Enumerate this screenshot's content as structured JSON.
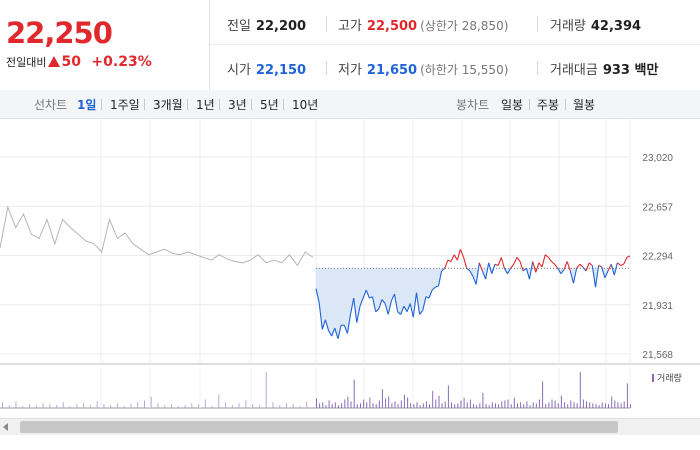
{
  "quote": {
    "price": "22,250",
    "change_label": "전일대비",
    "change_value": "50",
    "change_pct": "+0.23%",
    "stats": {
      "prev_close": {
        "label": "전일",
        "value": "22,200"
      },
      "high": {
        "label": "고가",
        "value": "22,500",
        "limit_text": "(상한가 28,850)"
      },
      "volume": {
        "label": "거래량",
        "value": "42,394"
      },
      "open": {
        "label": "시가",
        "value": "22,150"
      },
      "low": {
        "label": "저가",
        "value": "21,650",
        "limit_text": "(하한가 15,550)"
      },
      "amount": {
        "label": "거래대금",
        "value": "933 백만"
      }
    }
  },
  "toolbar": {
    "line_label": "선차트",
    "line_tabs": [
      "1일",
      "1주일",
      "3개월",
      "1년",
      "3년",
      "5년",
      "10년"
    ],
    "active_tab": "1일",
    "candle_label": "봉차트",
    "candle_tabs": [
      "일봉",
      "주봉",
      "월봉"
    ]
  },
  "chart_data": {
    "type": "line",
    "ylim": [
      21568,
      23020
    ],
    "y_ticks": [
      "23,020",
      "22,657",
      "22,294",
      "21,931",
      "21,568"
    ],
    "reference_price": 22200,
    "volume_legend": "거래량",
    "colors": {
      "up": "#e0292d",
      "down": "#1f63d6",
      "prev": "#b5b5b5",
      "fill": "#dce8f8"
    },
    "prev_day": [
      22350,
      22650,
      22500,
      22600,
      22450,
      22420,
      22560,
      22380,
      22560,
      22500,
      22450,
      22400,
      22380,
      22320,
      22560,
      22420,
      22460,
      22380,
      22340,
      22300,
      22320,
      22340,
      22310,
      22300,
      22320,
      22300,
      22280,
      22260,
      22300,
      22270,
      22250,
      22240,
      22260,
      22300,
      22240,
      22260,
      22240,
      22300,
      22220,
      22320,
      22280
    ],
    "session": {
      "price": [
        22050,
        21950,
        21750,
        21820,
        21740,
        21700,
        21760,
        21680,
        21780,
        21780,
        21720,
        21860,
        21980,
        21800,
        21920,
        21980,
        22040,
        21980,
        21990,
        21880,
        21900,
        21970,
        21940,
        21860,
        21960,
        22010,
        21880,
        21860,
        21920,
        21880,
        21940,
        21840,
        22020,
        21860,
        21890,
        21990,
        21980,
        22040,
        22060,
        22070,
        22180,
        22200,
        22260,
        22250,
        22300,
        22260,
        22340,
        22280,
        22200,
        22180,
        22140,
        22080,
        22240,
        22180,
        22120,
        22240,
        22160,
        22230,
        22220,
        22280,
        22200,
        22160,
        22200,
        22230,
        22280,
        22250,
        22180,
        22200,
        22120,
        22250,
        22170,
        22240,
        22210,
        22300,
        22280,
        22250,
        22230,
        22200,
        22160,
        22190,
        22250,
        22180,
        22090,
        22200,
        22230,
        22210,
        22180,
        22240,
        22220,
        22060,
        22220,
        22210,
        22130,
        22180,
        22230,
        22150,
        22240,
        22220,
        22230,
        22280,
        22290
      ],
      "volume": [
        10,
        5,
        6,
        3,
        8,
        4,
        6,
        3,
        5,
        9,
        12,
        7,
        30,
        4,
        5,
        9,
        6,
        11,
        5,
        4,
        8,
        20,
        10,
        12,
        5,
        7,
        4,
        8,
        14,
        11,
        5,
        4,
        6,
        3,
        5,
        7,
        4,
        18,
        9,
        13,
        5,
        7,
        24,
        6,
        4,
        5,
        8,
        11,
        6,
        9,
        4,
        3,
        5,
        16,
        4,
        3,
        6,
        5,
        4,
        7,
        8,
        9,
        4,
        11,
        5,
        6,
        4,
        7,
        3,
        6,
        5,
        9,
        28,
        4,
        6,
        9,
        8,
        5,
        13,
        6,
        4,
        8,
        6,
        5,
        38,
        9,
        7,
        6,
        5,
        4,
        3,
        6,
        5,
        4,
        12,
        8,
        6,
        5,
        7,
        26,
        4
      ]
    },
    "prev_volume": [
      6,
      3,
      7,
      2,
      4,
      3,
      5,
      4,
      3,
      6,
      2,
      4,
      5,
      3,
      7,
      4,
      3,
      5,
      2,
      4,
      6,
      8,
      12,
      5,
      3,
      4,
      2,
      3,
      5,
      4,
      9,
      2,
      14,
      6,
      3,
      5,
      8,
      4,
      3,
      38,
      6,
      3,
      5,
      4,
      2,
      7
    ]
  }
}
